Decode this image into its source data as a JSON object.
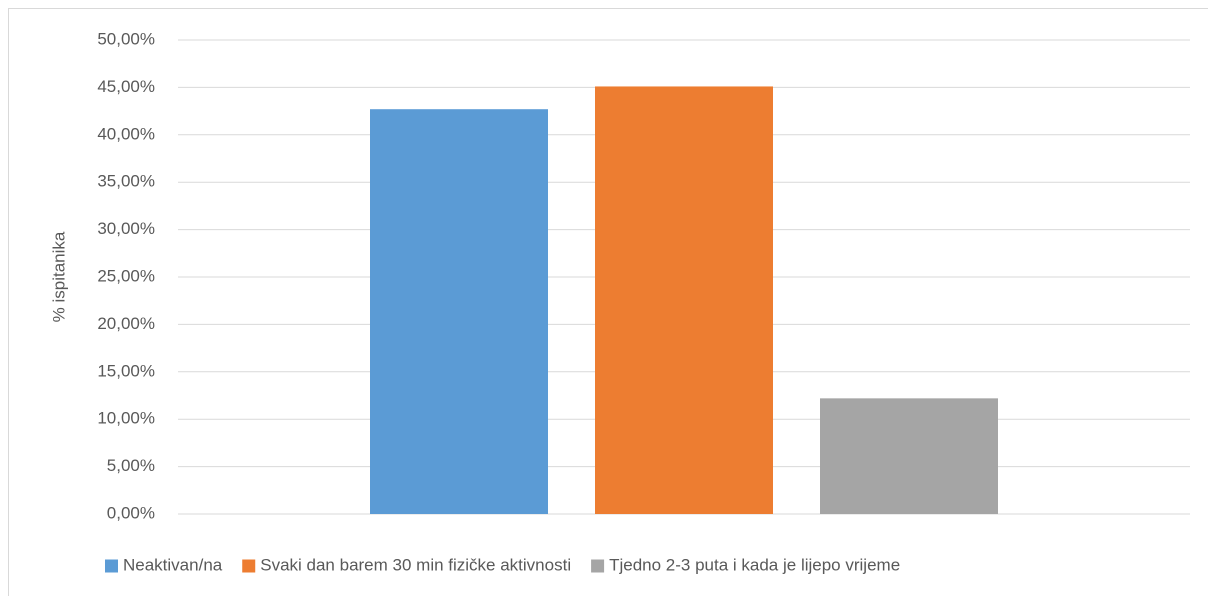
{
  "chart_data": {
    "type": "bar",
    "y_label": "% ispitanika",
    "categories": [
      null
    ],
    "series": [
      {
        "name": "Neaktivan/na",
        "color": "#5b9bd5",
        "values": [
          42.7
        ]
      },
      {
        "name": "Svaki dan barem 30 min fizičke aktivnosti",
        "color": "#ed7d31",
        "values": [
          45.1
        ]
      },
      {
        "name": "Tjedno 2-3 puta i kada je lijepo vrijeme",
        "color": "#a5a5a5",
        "values": [
          12.2
        ]
      }
    ],
    "ylim": [
      0,
      50
    ],
    "yticks": [
      {
        "value": 0,
        "label": "0,00%"
      },
      {
        "value": 5,
        "label": "5,00%"
      },
      {
        "value": 10,
        "label": "10,00%"
      },
      {
        "value": 15,
        "label": "15,00%"
      },
      {
        "value": 20,
        "label": "20,00%"
      },
      {
        "value": 25,
        "label": "25,00%"
      },
      {
        "value": 30,
        "label": "30,00%"
      },
      {
        "value": 35,
        "label": "35,00%"
      },
      {
        "value": 40,
        "label": "40,00%"
      },
      {
        "value": 45,
        "label": "45,00%"
      },
      {
        "value": 50,
        "label": "50,00%"
      }
    ],
    "grid": true,
    "legend": "bottom"
  }
}
